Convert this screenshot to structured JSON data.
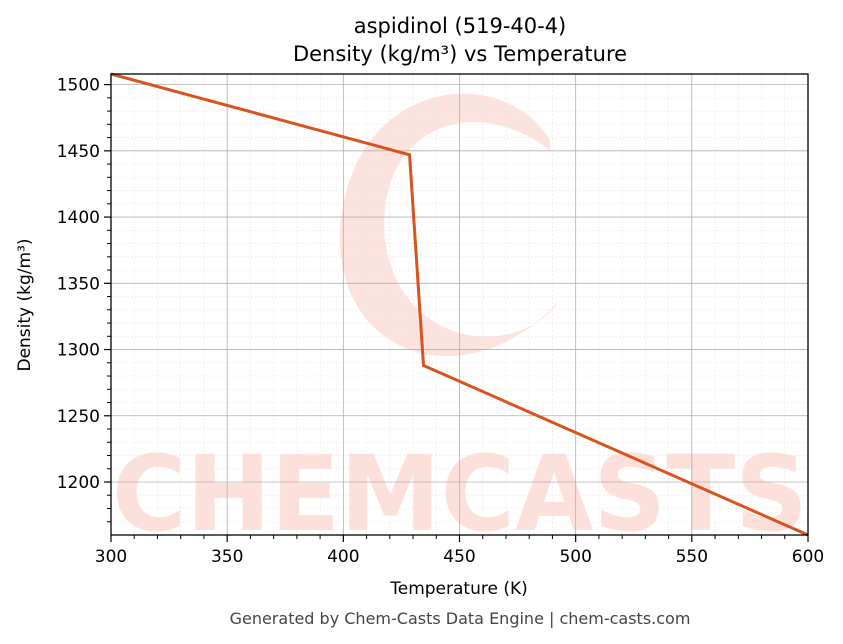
{
  "chart_data": {
    "type": "line",
    "title": "aspidinol (519-40-4)",
    "subtitle": "Density (kg/m³) vs Temperature",
    "xlabel": "Temperature (K)",
    "ylabel": "Density (kg/m³)",
    "xlim": [
      300,
      600
    ],
    "ylim": [
      1160,
      1508
    ],
    "x_ticks": [
      300,
      350,
      400,
      450,
      500,
      550,
      600
    ],
    "y_ticks": [
      1200,
      1250,
      1300,
      1350,
      1400,
      1450,
      1500
    ],
    "grid": true,
    "line_color": "#d9531e",
    "series": [
      {
        "x": [
          300,
          428.5,
          434.5,
          600
        ],
        "y": [
          1508,
          1447,
          1288,
          1160
        ]
      }
    ]
  },
  "watermark": {
    "text": "CHEMCASTS",
    "color": "#fde0da"
  },
  "footer": "Generated by Chem-Casts Data Engine | chem-casts.com"
}
